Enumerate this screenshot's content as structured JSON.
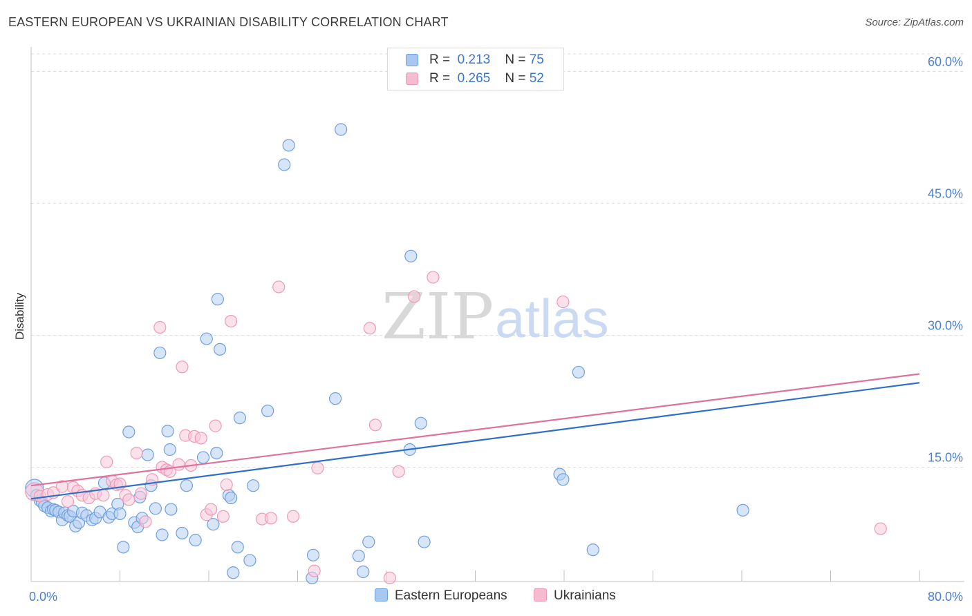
{
  "title": "EASTERN EUROPEAN VS UKRAINIAN DISABILITY CORRELATION CHART",
  "source": "Source: ZipAtlas.com",
  "watermark": {
    "zip": "ZIP",
    "atlas": "atlas"
  },
  "legend": {
    "r_label": "R =",
    "n_label": "N =",
    "rows": [
      {
        "r": "0.213",
        "n": "75",
        "color": "#a9c8f0"
      },
      {
        "r": "0.265",
        "n": "52",
        "color": "#f5bcd0"
      }
    ]
  },
  "chart_data": {
    "type": "scatter",
    "title": "EASTERN EUROPEAN VS UKRAINIAN DISABILITY CORRELATION CHART",
    "xlabel": "",
    "ylabel": "Disability",
    "xlim": [
      0,
      80
    ],
    "ylim": [
      2.0,
      62.0
    ],
    "x_tick_labels": [
      "0.0%",
      "80.0%"
    ],
    "y_ticks": [
      15,
      30,
      45,
      60
    ],
    "y_tick_labels": [
      "15.0%",
      "30.0%",
      "45.0%",
      "60.0%"
    ],
    "grid": true,
    "legend_position": "top-center",
    "series": [
      {
        "name": "Eastern Europeans",
        "color": "#6f9fe0",
        "fill": "#b7d0f3",
        "r": 0.213,
        "n": 75,
        "trend": {
          "x": [
            0,
            80
          ],
          "y": [
            11.4,
            24.6
          ],
          "color": "#2e6fcc"
        },
        "points": [
          [
            0.3,
            12.6
          ],
          [
            0.5,
            11.8
          ],
          [
            0.8,
            11.2
          ],
          [
            1.0,
            11.0
          ],
          [
            1.2,
            10.6
          ],
          [
            1.5,
            10.4
          ],
          [
            1.8,
            10.0
          ],
          [
            2.0,
            10.2
          ],
          [
            2.2,
            10.1
          ],
          [
            2.5,
            9.9
          ],
          [
            2.8,
            9.0
          ],
          [
            3.0,
            9.8
          ],
          [
            3.3,
            9.5
          ],
          [
            3.5,
            9.4
          ],
          [
            3.8,
            10.0
          ],
          [
            4.0,
            8.3
          ],
          [
            4.3,
            8.7
          ],
          [
            4.6,
            9.8
          ],
          [
            5.0,
            9.5
          ],
          [
            5.5,
            9.0
          ],
          [
            5.8,
            9.2
          ],
          [
            6.2,
            9.9
          ],
          [
            6.6,
            13.2
          ],
          [
            7.0,
            9.3
          ],
          [
            7.3,
            9.7
          ],
          [
            7.8,
            10.8
          ],
          [
            8.0,
            9.7
          ],
          [
            8.3,
            5.9
          ],
          [
            8.8,
            19.0
          ],
          [
            9.3,
            8.7
          ],
          [
            9.6,
            8.2
          ],
          [
            9.8,
            11.6
          ],
          [
            10.0,
            9.2
          ],
          [
            10.5,
            16.4
          ],
          [
            10.8,
            12.9
          ],
          [
            11.2,
            10.3
          ],
          [
            11.6,
            28.0
          ],
          [
            11.8,
            7.3
          ],
          [
            12.3,
            19.1
          ],
          [
            12.5,
            17.0
          ],
          [
            12.6,
            10.2
          ],
          [
            13.6,
            7.5
          ],
          [
            14.0,
            12.9
          ],
          [
            14.8,
            6.7
          ],
          [
            15.5,
            16.1
          ],
          [
            15.8,
            29.6
          ],
          [
            16.4,
            8.5
          ],
          [
            16.7,
            16.6
          ],
          [
            16.8,
            34.1
          ],
          [
            17.0,
            28.4
          ],
          [
            17.8,
            11.8
          ],
          [
            18.0,
            11.5
          ],
          [
            18.2,
            3.0
          ],
          [
            18.6,
            5.9
          ],
          [
            18.8,
            20.6
          ],
          [
            19.7,
            4.4
          ],
          [
            20.0,
            12.9
          ],
          [
            21.3,
            21.4
          ],
          [
            22.8,
            49.4
          ],
          [
            23.2,
            51.6
          ],
          [
            25.3,
            2.4
          ],
          [
            25.4,
            5.0
          ],
          [
            27.4,
            22.8
          ],
          [
            27.9,
            53.4
          ],
          [
            29.5,
            4.9
          ],
          [
            29.9,
            3.1
          ],
          [
            30.4,
            6.5
          ],
          [
            34.1,
            17.0
          ],
          [
            34.2,
            39.0
          ],
          [
            35.1,
            20.0
          ],
          [
            35.4,
            6.5
          ],
          [
            47.6,
            14.2
          ],
          [
            47.9,
            13.6
          ],
          [
            49.3,
            25.8
          ],
          [
            50.6,
            5.6
          ],
          [
            64.1,
            10.1
          ]
        ]
      },
      {
        "name": "Ukrainians",
        "color": "#ee9ab6",
        "fill": "#f7c8d8",
        "r": 0.265,
        "n": 52,
        "trend": {
          "x": [
            0,
            80
          ],
          "y": [
            12.9,
            25.6
          ],
          "color": "#e0709c"
        },
        "points": [
          [
            0.3,
            12.2
          ],
          [
            0.8,
            11.7
          ],
          [
            1.5,
            11.9
          ],
          [
            2.0,
            12.1
          ],
          [
            2.8,
            12.8
          ],
          [
            3.3,
            11.1
          ],
          [
            3.8,
            12.7
          ],
          [
            4.2,
            12.3
          ],
          [
            4.6,
            11.8
          ],
          [
            5.2,
            11.5
          ],
          [
            5.8,
            12.0
          ],
          [
            6.5,
            11.8
          ],
          [
            6.8,
            15.6
          ],
          [
            7.3,
            13.4
          ],
          [
            7.7,
            13.0
          ],
          [
            8.0,
            13.1
          ],
          [
            8.5,
            11.8
          ],
          [
            8.8,
            11.3
          ],
          [
            9.5,
            16.6
          ],
          [
            9.9,
            12.0
          ],
          [
            10.3,
            8.8
          ],
          [
            10.9,
            13.6
          ],
          [
            11.6,
            30.9
          ],
          [
            11.8,
            15.0
          ],
          [
            12.2,
            14.7
          ],
          [
            12.5,
            14.5
          ],
          [
            13.3,
            15.3
          ],
          [
            13.6,
            26.4
          ],
          [
            13.9,
            18.6
          ],
          [
            14.4,
            15.2
          ],
          [
            14.7,
            18.5
          ],
          [
            15.3,
            18.3
          ],
          [
            15.8,
            9.6
          ],
          [
            16.2,
            10.2
          ],
          [
            16.6,
            19.7
          ],
          [
            17.3,
            9.4
          ],
          [
            17.6,
            13.0
          ],
          [
            18.0,
            31.6
          ],
          [
            20.8,
            9.1
          ],
          [
            21.6,
            9.2
          ],
          [
            22.3,
            35.5
          ],
          [
            23.6,
            9.4
          ],
          [
            25.5,
            3.2
          ],
          [
            25.8,
            14.9
          ],
          [
            30.5,
            30.8
          ],
          [
            31.0,
            19.8
          ],
          [
            32.3,
            2.4
          ],
          [
            33.1,
            14.5
          ],
          [
            34.5,
            34.4
          ],
          [
            36.2,
            36.6
          ],
          [
            47.9,
            33.8
          ],
          [
            76.5,
            8.0
          ]
        ]
      }
    ]
  },
  "bottom_legend": [
    "Eastern Europeans",
    "Ukrainians"
  ]
}
